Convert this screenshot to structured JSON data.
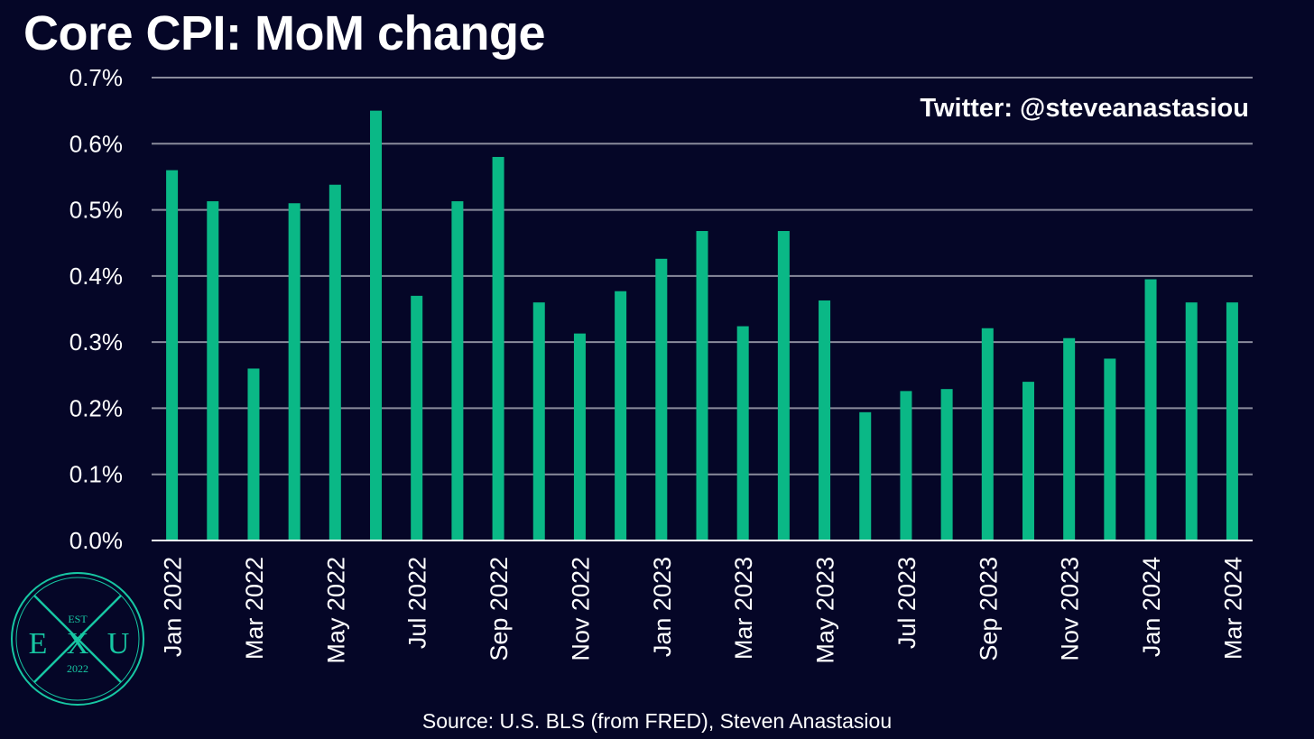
{
  "title": "Core CPI: MoM change",
  "credit": "Twitter: @steveanastasiou",
  "source": "Source: U.S. BLS (from FRED), Steven Anastasiou",
  "colors": {
    "background": "#050627",
    "bar": "#0ab886",
    "grid": "#8a8b9c",
    "logo": "#17c7a3",
    "text": "#ffffff"
  },
  "logo": {
    "top_text": "EST",
    "left_letter": "E",
    "center_letter": "X",
    "right_letter": "U",
    "bottom_text": "2022"
  },
  "chart_data": {
    "type": "bar",
    "title": "Core CPI: MoM change",
    "xlabel": "",
    "ylabel": "",
    "ylim": [
      0,
      0.7
    ],
    "yticks": [
      "0.0%",
      "0.1%",
      "0.2%",
      "0.3%",
      "0.4%",
      "0.5%",
      "0.6%",
      "0.7%"
    ],
    "grid": true,
    "x_tick_labels": [
      "Jan 2022",
      "Mar 2022",
      "May 2022",
      "Jul 2022",
      "Sep 2022",
      "Nov 2022",
      "Jan 2023",
      "Mar 2023",
      "May 2023",
      "Jul 2023",
      "Sep 2023",
      "Nov 2023",
      "Jan 2024",
      "Mar 2024"
    ],
    "categories": [
      "Jan 2022",
      "Feb 2022",
      "Mar 2022",
      "Apr 2022",
      "May 2022",
      "Jun 2022",
      "Jul 2022",
      "Aug 2022",
      "Sep 2022",
      "Oct 2022",
      "Nov 2022",
      "Dec 2022",
      "Jan 2023",
      "Feb 2023",
      "Mar 2023",
      "Apr 2023",
      "May 2023",
      "Jun 2023",
      "Jul 2023",
      "Aug 2023",
      "Sep 2023",
      "Oct 2023",
      "Nov 2023",
      "Dec 2023",
      "Jan 2024",
      "Feb 2024",
      "Mar 2024"
    ],
    "values": [
      0.56,
      0.513,
      0.26,
      0.51,
      0.538,
      0.65,
      0.37,
      0.513,
      0.58,
      0.36,
      0.313,
      0.377,
      0.426,
      0.468,
      0.324,
      0.468,
      0.363,
      0.194,
      0.226,
      0.229,
      0.321,
      0.24,
      0.306,
      0.275,
      0.395,
      0.36,
      0.36
    ]
  }
}
